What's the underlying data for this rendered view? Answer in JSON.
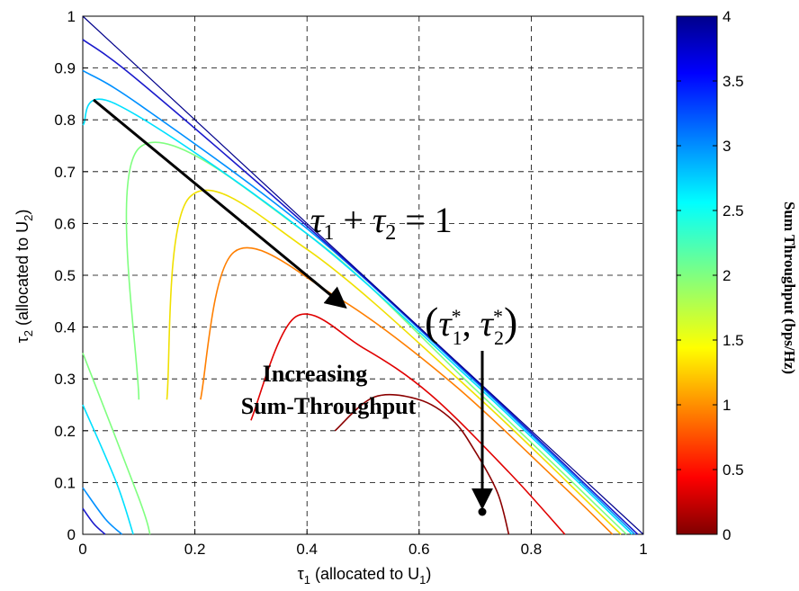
{
  "chart_data": {
    "type": "contour",
    "xlabel": {
      "main": "τ",
      "sub": "1",
      "rest": " (allocated to U",
      "sub2": "1",
      "end": ")"
    },
    "ylabel": {
      "main": "τ",
      "sub": "2",
      "rest": " (allocated to U",
      "sub2": "2",
      "end": ")"
    },
    "xlim": [
      0,
      1
    ],
    "ylim": [
      0,
      1
    ],
    "x_ticks": [
      "0",
      "0.2",
      "0.4",
      "0.6",
      "0.8",
      "1"
    ],
    "y_ticks": [
      "0",
      "0.1",
      "0.2",
      "0.3",
      "0.4",
      "0.5",
      "0.6",
      "0.7",
      "0.8",
      "0.9",
      "1"
    ],
    "grid": true,
    "constraint_line": {
      "label": "τ1 + τ2 = 1",
      "from": [
        0,
        1
      ],
      "to": [
        1,
        0
      ]
    },
    "optimum": {
      "label": "(τ1*, τ2*)",
      "point": [
        0.71,
        0.04
      ]
    },
    "annotation": {
      "line1": "Increasing",
      "line2": "Sum-Throughput"
    },
    "colorbar": {
      "label": "Sum Throughput (bps/Hz)",
      "range": [
        0,
        4
      ],
      "ticks": [
        "0",
        "0.5",
        "1",
        "1.5",
        "2",
        "2.5",
        "3",
        "3.5",
        "4"
      ],
      "colormap": "jet"
    },
    "contours": [
      {
        "level": 0.25,
        "color": "#8b0000",
        "curve": [
          [
            0.45,
            0.2
          ],
          [
            0.52,
            0.265
          ],
          [
            0.6,
            0.26
          ],
          [
            0.66,
            0.22
          ],
          [
            0.7,
            0.16
          ],
          [
            0.74,
            0.08
          ],
          [
            0.76,
            0.0
          ]
        ]
      },
      {
        "level": 0.5,
        "color": "#e00000",
        "curve": [
          [
            0.3,
            0.22
          ],
          [
            0.38,
            0.42
          ],
          [
            0.5,
            0.36
          ],
          [
            0.62,
            0.27
          ],
          [
            0.76,
            0.12
          ],
          [
            0.86,
            0.0
          ]
        ]
      },
      {
        "level": 1.0,
        "color": "#ff7f00",
        "curve": [
          [
            0.21,
            0.26
          ],
          [
            0.27,
            0.545
          ],
          [
            0.45,
            0.46
          ],
          [
            0.65,
            0.3
          ],
          [
            0.85,
            0.1
          ],
          [
            0.945,
            0.0
          ]
        ]
      },
      {
        "level": 1.5,
        "color": "#f0e000",
        "curve": [
          [
            0.15,
            0.26
          ],
          [
            0.19,
            0.65
          ],
          [
            0.4,
            0.55
          ],
          [
            0.7,
            0.27
          ],
          [
            0.96,
            0.0
          ]
        ]
      },
      {
        "level": 2.0,
        "color": "#80ff80",
        "curve": [
          [
            0.1,
            0.26
          ],
          [
            0.1,
            0.745
          ],
          [
            0.4,
            0.58
          ],
          [
            0.7,
            0.28
          ],
          [
            0.97,
            0.0
          ]
        ]
      },
      {
        "level": 2.5,
        "color": "#00e0ff",
        "curve": [
          [
            0.0,
            0.79
          ],
          [
            0.06,
            0.83
          ],
          [
            0.4,
            0.58
          ],
          [
            0.7,
            0.29
          ],
          [
            0.98,
            0.0
          ]
        ]
      },
      {
        "level": 3.0,
        "color": "#0090ff",
        "curve": [
          [
            0.0,
            0.895
          ],
          [
            0.1,
            0.83
          ],
          [
            0.4,
            0.59
          ],
          [
            0.7,
            0.295
          ],
          [
            0.985,
            0.0
          ]
        ]
      },
      {
        "level": 3.5,
        "color": "#1a1acc",
        "curve": [
          [
            0.0,
            0.955
          ],
          [
            0.1,
            0.875
          ],
          [
            0.4,
            0.595
          ],
          [
            0.7,
            0.298
          ],
          [
            0.99,
            0.0
          ]
        ]
      }
    ],
    "corner_contours": [
      {
        "color": "#0090ff",
        "points": [
          [
            0.0,
            0.09
          ],
          [
            0.04,
            0.03
          ],
          [
            0.07,
            0.0
          ]
        ]
      },
      {
        "color": "#00e0ff",
        "points": [
          [
            0.0,
            0.25
          ],
          [
            0.06,
            0.1
          ],
          [
            0.09,
            0.0
          ]
        ]
      },
      {
        "color": "#80ff80",
        "points": [
          [
            0.0,
            0.35
          ],
          [
            0.1,
            0.07
          ],
          [
            0.12,
            0.0
          ]
        ]
      },
      {
        "color": "#1a1acc",
        "points": [
          [
            0.0,
            0.05
          ],
          [
            0.02,
            0.02
          ],
          [
            0.04,
            0.0
          ]
        ]
      }
    ]
  }
}
